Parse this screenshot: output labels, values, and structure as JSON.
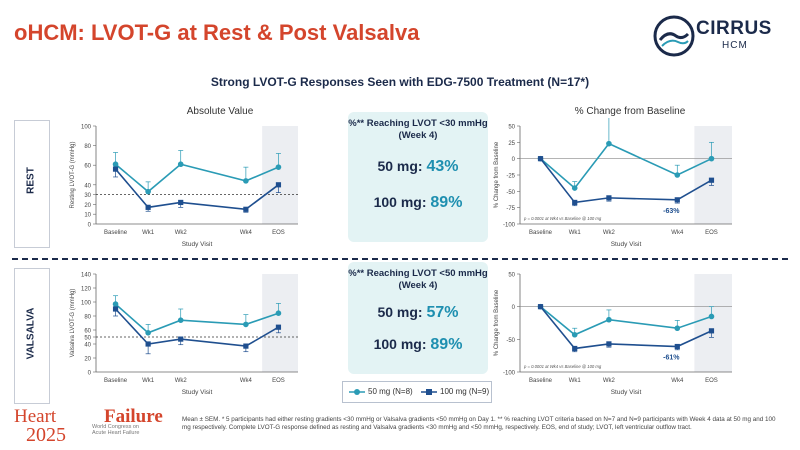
{
  "header": {
    "title": "oHCM: LVOT-G at Rest & Post Valsalva",
    "logo_name": "CIRRUS",
    "logo_sub": "HCM"
  },
  "subtitle": "Strong LVOT-G Responses Seen with EDG-7500 Treatment (N=17*)",
  "panels": {
    "absolute_title": "Absolute Value",
    "change_title": "% Change from Baseline"
  },
  "rows": {
    "rest_label": "REST",
    "valsalva_label": "VALSALVA"
  },
  "stats": {
    "rest": {
      "heading_line1": "%** Reaching LVOT <30 mmHg",
      "heading_line2": "(Week 4)",
      "line1_prefix": "50 mg: ",
      "line1_value": "43%",
      "line2_prefix": "100 mg: ",
      "line2_value": "89%"
    },
    "valsalva": {
      "heading_line1": "%** Reaching LVOT <50 mmHg",
      "heading_line2": "(Week 4)",
      "line1_prefix": "50 mg: ",
      "line1_value": "57%",
      "line2_prefix": "100 mg: ",
      "line2_value": "89%"
    }
  },
  "legend": {
    "series1": "50 mg (N=8)",
    "series2": "100 mg (N=9)"
  },
  "colors": {
    "accent_red": "#d4452c",
    "navy": "#1b2a4a",
    "series_50mg": "#2a9bb5",
    "series_100mg": "#1f4f8f",
    "stat_box": "#e3f3f4"
  },
  "chart_data": [
    {
      "type": "line",
      "name": "rest-absolute",
      "categories": [
        "Baseline",
        "Wk1",
        "Wk2",
        "Wk4",
        "EOS"
      ],
      "x": [
        0,
        1,
        2,
        4,
        5
      ],
      "ylabel": "Resting LVOT-G (mmHg)",
      "xlabel": "Study Visit",
      "ylim": [
        0,
        100
      ],
      "yticks": [
        0,
        10,
        20,
        30,
        40,
        60,
        80,
        100
      ],
      "threshold": 30,
      "series": [
        {
          "name": "50 mg (N=8)",
          "values": [
            61,
            33,
            61,
            44,
            58
          ],
          "err": [
            12,
            10,
            14,
            14,
            14
          ]
        },
        {
          "name": "100 mg (N=9)",
          "values": [
            56,
            17,
            22,
            15,
            40
          ],
          "err": [
            8,
            4,
            5,
            3,
            8
          ]
        }
      ]
    },
    {
      "type": "line",
      "name": "rest-change",
      "categories": [
        "Baseline",
        "Wk1",
        "Wk2",
        "Wk4",
        "EOS"
      ],
      "x": [
        0,
        1,
        2,
        4,
        5
      ],
      "ylabel": "% Change from Baseline",
      "xlabel": "Study Visit",
      "ylim": [
        -100,
        50
      ],
      "yticks": [
        -100,
        -75,
        -50,
        -25,
        0,
        25,
        50
      ],
      "annotation": "p = 0.0001 at Wk4 vs Baseline @ 100 mg",
      "point_label": "-63%",
      "series": [
        {
          "name": "50 mg (N=8)",
          "values": [
            0,
            -45,
            23,
            -25,
            0
          ],
          "err": [
            0,
            10,
            42,
            15,
            25
          ]
        },
        {
          "name": "100 mg (N=9)",
          "values": [
            0,
            -67,
            -60,
            -63,
            -33
          ],
          "err": [
            0,
            5,
            5,
            5,
            8
          ]
        }
      ]
    },
    {
      "type": "line",
      "name": "valsalva-absolute",
      "categories": [
        "Baseline",
        "Wk1",
        "Wk2",
        "Wk4",
        "EOS"
      ],
      "x": [
        0,
        1,
        2,
        4,
        5
      ],
      "ylabel": "Valsalva LVOT-G (mmHg)",
      "xlabel": "Study Visit",
      "ylim": [
        0,
        140
      ],
      "yticks": [
        0,
        20,
        40,
        50,
        60,
        80,
        100,
        120,
        140
      ],
      "threshold": 50,
      "series": [
        {
          "name": "50 mg (N=8)",
          "values": [
            97,
            56,
            74,
            68,
            84
          ],
          "err": [
            12,
            12,
            16,
            14,
            14
          ]
        },
        {
          "name": "100 mg (N=9)",
          "values": [
            90,
            40,
            47,
            37,
            64
          ],
          "err": [
            10,
            14,
            8,
            8,
            8
          ]
        }
      ]
    },
    {
      "type": "line",
      "name": "valsalva-change",
      "categories": [
        "Baseline",
        "Wk1",
        "Wk2",
        "Wk4",
        "EOS"
      ],
      "x": [
        0,
        1,
        2,
        4,
        5
      ],
      "ylabel": "% Change from Baseline",
      "xlabel": "Study Visit",
      "ylim": [
        -100,
        50
      ],
      "yticks": [
        -100,
        -50,
        0,
        50
      ],
      "annotation": "p = 0.0001 at Wk4 vs Baseline @ 100 mg",
      "point_label": "-61%",
      "series": [
        {
          "name": "50 mg (N=8)",
          "values": [
            0,
            -43,
            -20,
            -33,
            -15
          ],
          "err": [
            0,
            10,
            15,
            12,
            15
          ]
        },
        {
          "name": "100 mg (N=9)",
          "values": [
            0,
            -64,
            -57,
            -61,
            -37
          ],
          "err": [
            0,
            5,
            5,
            5,
            10
          ]
        }
      ]
    }
  ],
  "footer": {
    "logo_line1a": "Heart",
    "logo_line1b": "Failure",
    "logo_year": "2025",
    "logo_small": "World Congress on Acute Heart Failure",
    "footnote": "Mean ± SEM. * 5 participants had either resting gradients <30 mmHg or Valsalva gradients <50 mmHg on Day 1. ** % reaching LVOT criteria based on N=7 and N=9 participants with Week 4 data at 50 mg and 100 mg respectively. Complete LVOT-G response defined as resting and Valsalva gradients <30 mmHg and <50 mmHg, respectively. EOS, end of study; LVOT, left ventricular outflow tract."
  }
}
